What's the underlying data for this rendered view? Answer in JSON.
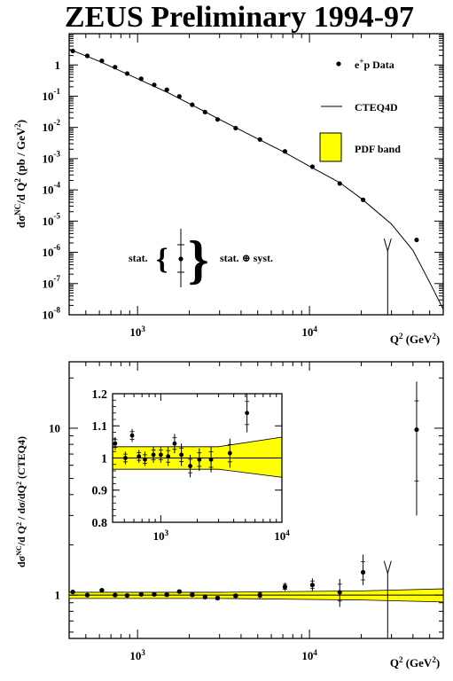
{
  "title": "ZEUS Preliminary 1994-97",
  "chart_data": [
    {
      "type": "scatter",
      "panel": "top",
      "xscale": "log",
      "yscale": "log",
      "xlim": [
        400,
        60000
      ],
      "ylim": [
        1e-08,
        10
      ],
      "x_ticks": [
        {
          "value": 1000,
          "label": "10",
          "exp": "3"
        },
        {
          "value": 10000,
          "label": "10",
          "exp": "4"
        }
      ],
      "y_ticks": [
        {
          "value": 1,
          "label": "1",
          "exp": ""
        },
        {
          "value": 0.1,
          "label": "10",
          "exp": "-1"
        },
        {
          "value": 0.01,
          "label": "10",
          "exp": "-2"
        },
        {
          "value": 0.001,
          "label": "10",
          "exp": "-3"
        },
        {
          "value": 0.0001,
          "label": "10",
          "exp": "-4"
        },
        {
          "value": 1e-05,
          "label": "10",
          "exp": "-5"
        },
        {
          "value": 1e-06,
          "label": "10",
          "exp": "-6"
        },
        {
          "value": 1e-07,
          "label": "10",
          "exp": "-7"
        },
        {
          "value": 1e-08,
          "label": "10",
          "exp": "-8"
        }
      ],
      "xlabel": {
        "main": "Q",
        "sup": "2",
        "unit": " (GeV",
        "unit_sup": "2",
        "close": ")"
      },
      "ylabel": {
        "p1": "dσ",
        "sup1": "NC",
        "p2": "/d Q",
        "sup2": "2",
        "p3": " (pb / GeV",
        "sup3": "2",
        "p4": ")"
      },
      "legend": {
        "placement": "top-right",
        "data_label": "e",
        "data_label_sup": "+",
        "data_label_rest": "p Data",
        "theory_label": "CTEQ4D",
        "band_label": "PDF band",
        "band_color": "#ffff00"
      },
      "error_key": {
        "stat_label": "stat.",
        "syst_label": "stat. ⊕ syst."
      },
      "series": [
        {
          "name": "e+p Data",
          "points": [
            {
              "x": 420,
              "y": 2.8
            },
            {
              "x": 510,
              "y": 1.95
            },
            {
              "x": 620,
              "y": 1.35
            },
            {
              "x": 740,
              "y": 0.85
            },
            {
              "x": 870,
              "y": 0.53
            },
            {
              "x": 1050,
              "y": 0.36
            },
            {
              "x": 1250,
              "y": 0.23
            },
            {
              "x": 1480,
              "y": 0.16
            },
            {
              "x": 1750,
              "y": 0.098
            },
            {
              "x": 2080,
              "y": 0.053
            },
            {
              "x": 2470,
              "y": 0.031
            },
            {
              "x": 2920,
              "y": 0.018
            },
            {
              "x": 3720,
              "y": 0.0095
            },
            {
              "x": 5150,
              "y": 0.0041
            },
            {
              "x": 7200,
              "y": 0.0017
            },
            {
              "x": 10400,
              "y": 0.00055
            },
            {
              "x": 15000,
              "y": 0.00016
            },
            {
              "x": 20500,
              "y": 4.8e-05
            },
            {
              "x": 42000,
              "y": 2.5e-06
            }
          ],
          "upper_limit": {
            "x": 28500,
            "y": 1.1e-06
          }
        },
        {
          "name": "CTEQ4D",
          "curve": [
            {
              "x": 400,
              "y": 3.2
            },
            {
              "x": 600,
              "y": 1.3
            },
            {
              "x": 1000,
              "y": 0.36
            },
            {
              "x": 1500,
              "y": 0.13
            },
            {
              "x": 2000,
              "y": 0.058
            },
            {
              "x": 3000,
              "y": 0.018
            },
            {
              "x": 5000,
              "y": 0.0043
            },
            {
              "x": 7000,
              "y": 0.0017
            },
            {
              "x": 10000,
              "y": 0.00057
            },
            {
              "x": 15000,
              "y": 0.00017
            },
            {
              "x": 20000,
              "y": 5.3e-05
            },
            {
              "x": 30000,
              "y": 8e-06
            },
            {
              "x": 40000,
              "y": 1.15e-06
            },
            {
              "x": 50000,
              "y": 1.1e-07
            },
            {
              "x": 60000,
              "y": 1.5e-08
            }
          ]
        }
      ]
    },
    {
      "type": "scatter",
      "panel": "bottom",
      "xscale": "log",
      "yscale": "log",
      "xlim": [
        400,
        60000
      ],
      "ylim": [
        0.55,
        25
      ],
      "x_ticks": [
        {
          "value": 1000,
          "label": "10",
          "exp": "3"
        },
        {
          "value": 10000,
          "label": "10",
          "exp": "4"
        }
      ],
      "y_ticks": [
        {
          "value": 1,
          "label": "1",
          "exp": ""
        },
        {
          "value": 10,
          "label": "10",
          "exp": ""
        }
      ],
      "xlabel": {
        "main": "Q",
        "sup": "2",
        "unit": " (GeV",
        "unit_sup": "2",
        "close": ")"
      },
      "ylabel": {
        "p1": "dσ",
        "sup1": "NC",
        "p2": "/d Q",
        "sup2": "2",
        "p3": " / dσ/dQ",
        "sup3": "2",
        "p4": " (CTEQ4)"
      },
      "band": {
        "color": "#ffff00",
        "lower": [
          {
            "x": 400,
            "y": 0.955
          },
          {
            "x": 3000,
            "y": 0.955
          },
          {
            "x": 20000,
            "y": 0.935
          },
          {
            "x": 60000,
            "y": 0.91
          }
        ],
        "upper": [
          {
            "x": 400,
            "y": 1.04
          },
          {
            "x": 3000,
            "y": 1.04
          },
          {
            "x": 20000,
            "y": 1.06
          },
          {
            "x": 60000,
            "y": 1.09
          }
        ]
      },
      "reference_line": 1,
      "series": [
        {
          "name": "e+p Data / CTEQ4D",
          "points": [
            {
              "x": 420,
              "y": 1.045,
              "lo": 1.03,
              "hi": 1.06
            },
            {
              "x": 510,
              "y": 1.0,
              "lo": 0.985,
              "hi": 1.015
            },
            {
              "x": 620,
              "y": 1.07,
              "lo": 1.05,
              "hi": 1.09
            },
            {
              "x": 740,
              "y": 1.0,
              "lo": 0.98,
              "hi": 1.02
            },
            {
              "x": 870,
              "y": 0.995,
              "lo": 0.97,
              "hi": 1.02
            },
            {
              "x": 1050,
              "y": 1.01,
              "lo": 0.985,
              "hi": 1.035
            },
            {
              "x": 1250,
              "y": 1.01,
              "lo": 0.985,
              "hi": 1.035
            },
            {
              "x": 1480,
              "y": 1.005,
              "lo": 0.975,
              "hi": 1.035
            },
            {
              "x": 1750,
              "y": 1.05,
              "lo": 1.02,
              "hi": 1.08
            },
            {
              "x": 2080,
              "y": 1.005,
              "lo": 0.97,
              "hi": 1.04
            },
            {
              "x": 2470,
              "y": 0.975,
              "lo": 0.94,
              "hi": 1.01
            },
            {
              "x": 2920,
              "y": 0.96,
              "lo": 0.93,
              "hi": 0.99
            },
            {
              "x": 3720,
              "y": 0.99,
              "lo": 0.955,
              "hi": 1.025
            },
            {
              "x": 5150,
              "y": 1.0,
              "lo": 0.955,
              "hi": 1.05
            },
            {
              "x": 7200,
              "y": 1.12,
              "lo": 1.06,
              "hi": 1.19
            },
            {
              "x": 10400,
              "y": 1.15,
              "lo": 1.06,
              "hi": 1.26
            },
            {
              "x": 15000,
              "y": 1.04,
              "lo": 0.85,
              "hi": 1.25
            },
            {
              "x": 20500,
              "y": 1.37,
              "lo": 1.15,
              "hi": 1.75
            },
            {
              "x": 42000,
              "y": 9.8,
              "lo": 3.0,
              "hi": 19.0
            }
          ],
          "upper_limit": {
            "x": 28500,
            "y": 1.35
          }
        }
      ]
    },
    {
      "type": "scatter",
      "panel": "inset",
      "xscale": "log",
      "yscale": "linear",
      "xlim": [
        400,
        10000
      ],
      "ylim": [
        0.8,
        1.2
      ],
      "x_ticks": [
        {
          "value": 1000,
          "label": "10",
          "exp": "3"
        },
        {
          "value": 10000,
          "label": "10",
          "exp": "4"
        }
      ],
      "y_ticks": [
        {
          "value": 1.2,
          "label": "1.2",
          "exp": ""
        },
        {
          "value": 1.1,
          "label": "1.1",
          "exp": ""
        },
        {
          "value": 1.0,
          "label": "1",
          "exp": ""
        },
        {
          "value": 0.9,
          "label": "0.9",
          "exp": ""
        },
        {
          "value": 0.8,
          "label": "0.8",
          "exp": ""
        }
      ],
      "band": {
        "color": "#ffff00",
        "lower": [
          {
            "x": 400,
            "y": 0.965
          },
          {
            "x": 3000,
            "y": 0.965
          },
          {
            "x": 10000,
            "y": 0.94
          }
        ],
        "upper": [
          {
            "x": 400,
            "y": 1.035
          },
          {
            "x": 3000,
            "y": 1.035
          },
          {
            "x": 10000,
            "y": 1.065
          }
        ]
      },
      "reference_line": 1,
      "series": [
        {
          "name": "e+p Data / CTEQ4D",
          "points": [
            {
              "x": 420,
              "y": 1.045,
              "lo": 1.025,
              "hi": 1.065
            },
            {
              "x": 510,
              "y": 1.0,
              "lo": 0.98,
              "hi": 1.02
            },
            {
              "x": 580,
              "y": 1.07,
              "lo": 1.05,
              "hi": 1.09
            },
            {
              "x": 660,
              "y": 1.005,
              "lo": 0.985,
              "hi": 1.025
            },
            {
              "x": 740,
              "y": 0.995,
              "lo": 0.975,
              "hi": 1.02
            },
            {
              "x": 870,
              "y": 1.01,
              "lo": 0.985,
              "hi": 1.035
            },
            {
              "x": 1000,
              "y": 1.01,
              "lo": 0.985,
              "hi": 1.035
            },
            {
              "x": 1150,
              "y": 1.005,
              "lo": 0.975,
              "hi": 1.035
            },
            {
              "x": 1300,
              "y": 1.045,
              "lo": 1.015,
              "hi": 1.075
            },
            {
              "x": 1480,
              "y": 1.01,
              "lo": 0.975,
              "hi": 1.045
            },
            {
              "x": 1750,
              "y": 0.975,
              "lo": 0.94,
              "hi": 1.01
            },
            {
              "x": 2080,
              "y": 0.995,
              "lo": 0.96,
              "hi": 1.03
            },
            {
              "x": 2600,
              "y": 0.995,
              "lo": 0.955,
              "hi": 1.035
            },
            {
              "x": 3720,
              "y": 1.015,
              "lo": 0.97,
              "hi": 1.06
            },
            {
              "x": 5150,
              "y": 1.14,
              "lo": 1.08,
              "hi": 1.2
            }
          ]
        }
      ]
    }
  ]
}
